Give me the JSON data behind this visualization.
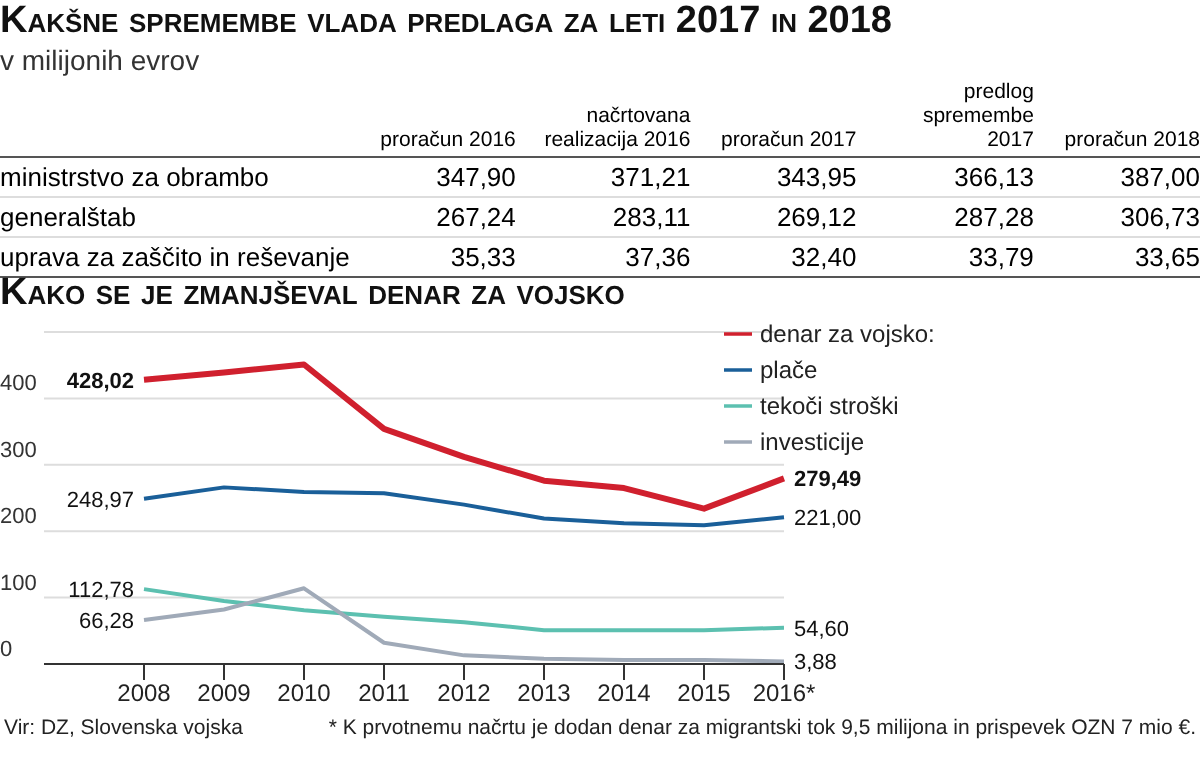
{
  "chart_data": [
    {
      "type": "heatmap",
      "title": "Kakšne spremembe vlada predlaga za leti 2017 in 2018",
      "subtitle": "v milijonih evrov",
      "categories": [
        "proračun 2016",
        "načrtovana realizacija 2016",
        "proračun 2017",
        "predlog spremembe 2017",
        "proračun 2018"
      ],
      "y_categories": [
        "ministrstvo za obrambo",
        "generalštab",
        "uprava za zaščito in reševanje"
      ],
      "cells": [
        [
          347.9,
          371.21,
          343.95,
          366.13,
          387.0
        ],
        [
          267.24,
          283.11,
          269.12,
          287.28,
          306.73
        ],
        [
          35.33,
          37.36,
          32.4,
          33.79,
          33.65
        ]
      ],
      "cell_labels": [
        [
          "347,90",
          "371,21",
          "343,95",
          "366,13",
          "387,00"
        ],
        [
          "267,24",
          "283,11",
          "269,12",
          "287,28",
          "306,73"
        ],
        [
          "35,33",
          "37,36",
          "32,40",
          "33,79",
          "33,65"
        ]
      ]
    },
    {
      "type": "line",
      "title": "Kako se je zmanjševal denar za vojsko",
      "categories": [
        "2008",
        "2009",
        "2010",
        "2011",
        "2012",
        "2013",
        "2014",
        "2015",
        "2016*"
      ],
      "series": [
        {
          "name": "denar za vojsko:",
          "color": "#d0202e",
          "values": [
            428.02,
            439,
            451,
            354,
            312,
            276,
            265,
            234,
            279.49
          ],
          "value_labels": [
            "428,02",
            null,
            null,
            null,
            null,
            null,
            null,
            null,
            "279,49"
          ]
        },
        {
          "name": "plače",
          "color": "#1a5f99",
          "values": [
            248.97,
            266,
            259,
            257,
            240,
            219,
            212,
            209,
            221.0
          ],
          "value_labels": [
            "248,97",
            null,
            null,
            null,
            null,
            null,
            null,
            null,
            "221,00"
          ]
        },
        {
          "name": "tekoči stroški",
          "color": "#5cc0b0",
          "values": [
            112.78,
            95,
            81,
            71,
            63,
            51,
            51,
            51,
            54.6
          ],
          "value_labels": [
            "112,78",
            null,
            null,
            null,
            null,
            null,
            null,
            null,
            "54,60"
          ]
        },
        {
          "name": "investicije",
          "color": "#a0aab8",
          "values": [
            66.28,
            82,
            114,
            32,
            13,
            8,
            6,
            6,
            3.88
          ],
          "value_labels": [
            "66,28",
            null,
            null,
            null,
            null,
            null,
            null,
            null,
            "3,88"
          ]
        }
      ],
      "ylim": [
        0,
        500
      ],
      "yticks": [
        0,
        100,
        200,
        300,
        400,
        {
          "value": 500,
          "label": null
        }
      ],
      "grid": "y",
      "legend": "top right",
      "marker": "none",
      "line_style": "solid",
      "annotations": [
        "* K prvotnemu načrtu je dodan denar za migrantski tok 9,5 milijona in prispevek OZN 7 mio €.",
        "Vir: DZ, Slovenska vojska"
      ]
    }
  ]
}
